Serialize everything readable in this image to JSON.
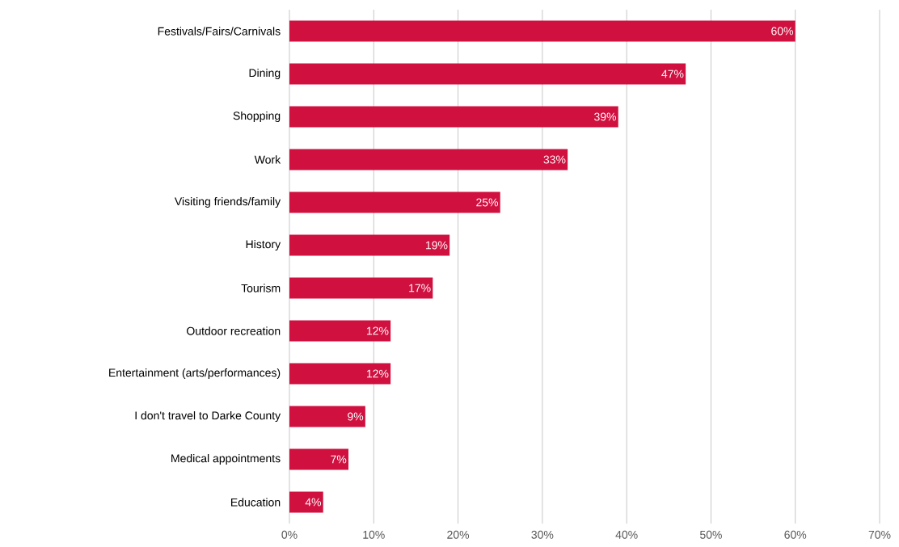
{
  "chart_data": {
    "type": "bar",
    "orientation": "horizontal",
    "categories": [
      "Festivals/Fairs/Carnivals",
      "Dining",
      "Shopping",
      "Work",
      "Visiting friends/family",
      "History",
      "Tourism",
      "Outdoor recreation",
      "Entertainment (arts/performances)",
      "I don't travel to Darke County",
      "Medical appointments",
      "Education"
    ],
    "values": [
      60,
      47,
      39,
      33,
      25,
      19,
      17,
      12,
      12,
      9,
      7,
      4
    ],
    "value_labels": [
      "60%",
      "47%",
      "39%",
      "33%",
      "25%",
      "19%",
      "17%",
      "12%",
      "12%",
      "9%",
      "7%",
      "4%"
    ],
    "color": "#d0103f",
    "xlim": [
      0,
      70
    ],
    "xticks": [
      {
        "value": 0,
        "label": "0%"
      },
      {
        "value": 10,
        "label": "10%"
      },
      {
        "value": 20,
        "label": "20%"
      },
      {
        "value": 30,
        "label": "30%"
      },
      {
        "value": 40,
        "label": "40%"
      },
      {
        "value": 50,
        "label": "50%"
      },
      {
        "value": 60,
        "label": "60%"
      },
      {
        "value": 70,
        "label": "70%"
      }
    ],
    "grid": "x"
  }
}
